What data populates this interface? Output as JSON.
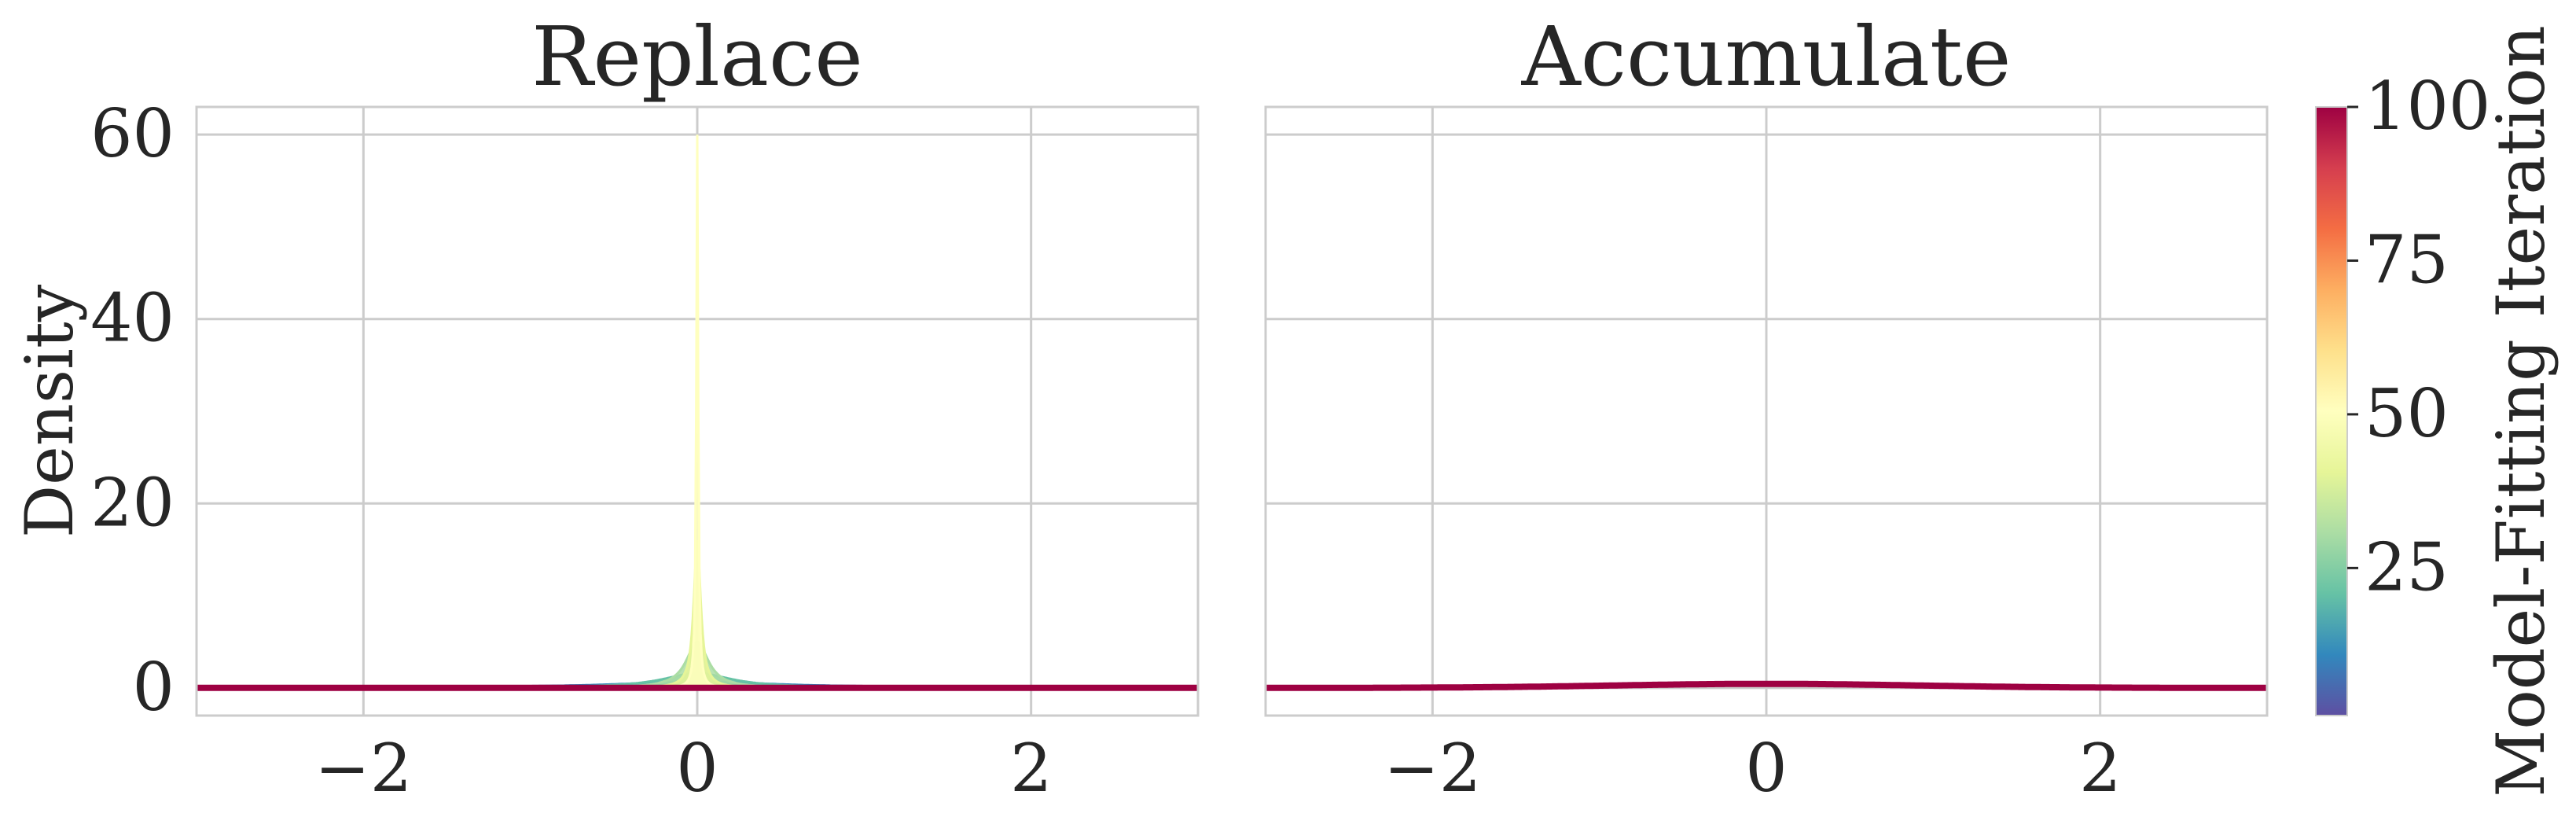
{
  "chart_data": [
    {
      "type": "line",
      "title": "Replace",
      "xlabel": "",
      "ylabel": "Density",
      "xlim": [
        -3,
        3
      ],
      "ylim": [
        -3,
        63
      ],
      "xticks": [
        "−2",
        "0",
        "2"
      ],
      "xtick_values": [
        -2,
        0,
        2
      ],
      "yticks": [
        "0",
        "20",
        "40",
        "60"
      ],
      "ytick_values": [
        0,
        20,
        40,
        60
      ],
      "grid": true,
      "series": [
        {
          "iteration": 1,
          "color": "#5e4fa2",
          "sigma": 1.0
        },
        {
          "iteration": 10,
          "color": "#3288bd",
          "sigma": 0.6
        },
        {
          "iteration": 20,
          "color": "#66c2a5",
          "sigma": 0.25
        },
        {
          "iteration": 30,
          "color": "#abdda4",
          "sigma": 0.08
        },
        {
          "iteration": 40,
          "color": "#e6f598",
          "sigma": 0.025
        },
        {
          "iteration": 50,
          "color": "#ffffbf",
          "sigma": 0.0066
        },
        {
          "iteration": 100,
          "color": "#9e0142",
          "sigma": 0.0
        }
      ],
      "peak_density": 60,
      "final_density_baseline": 0
    },
    {
      "type": "line",
      "title": "Accumulate",
      "xlabel": "",
      "ylabel": "",
      "xlim": [
        -3,
        3
      ],
      "ylim": [
        -3,
        63
      ],
      "xticks": [
        "−2",
        "0",
        "2"
      ],
      "xtick_values": [
        -2,
        0,
        2
      ],
      "yticks": [],
      "grid": true,
      "series": [
        {
          "iteration": 100,
          "color": "#9e0142",
          "sigma": 0.9
        }
      ],
      "peak_density": 0.44
    }
  ],
  "colorbar": {
    "label": "Model-Fitting Iteration",
    "colormap": "Spectral_r",
    "range": [
      1,
      100
    ],
    "ticks": [
      "25",
      "50",
      "75",
      "100"
    ],
    "tick_values": [
      25,
      50,
      75,
      100
    ],
    "colors": [
      "#5e4fa2",
      "#3288bd",
      "#66c2a5",
      "#abdda4",
      "#e6f598",
      "#ffffbf",
      "#fee08b",
      "#fdae61",
      "#f46d43",
      "#d53e4f",
      "#9e0142"
    ]
  }
}
